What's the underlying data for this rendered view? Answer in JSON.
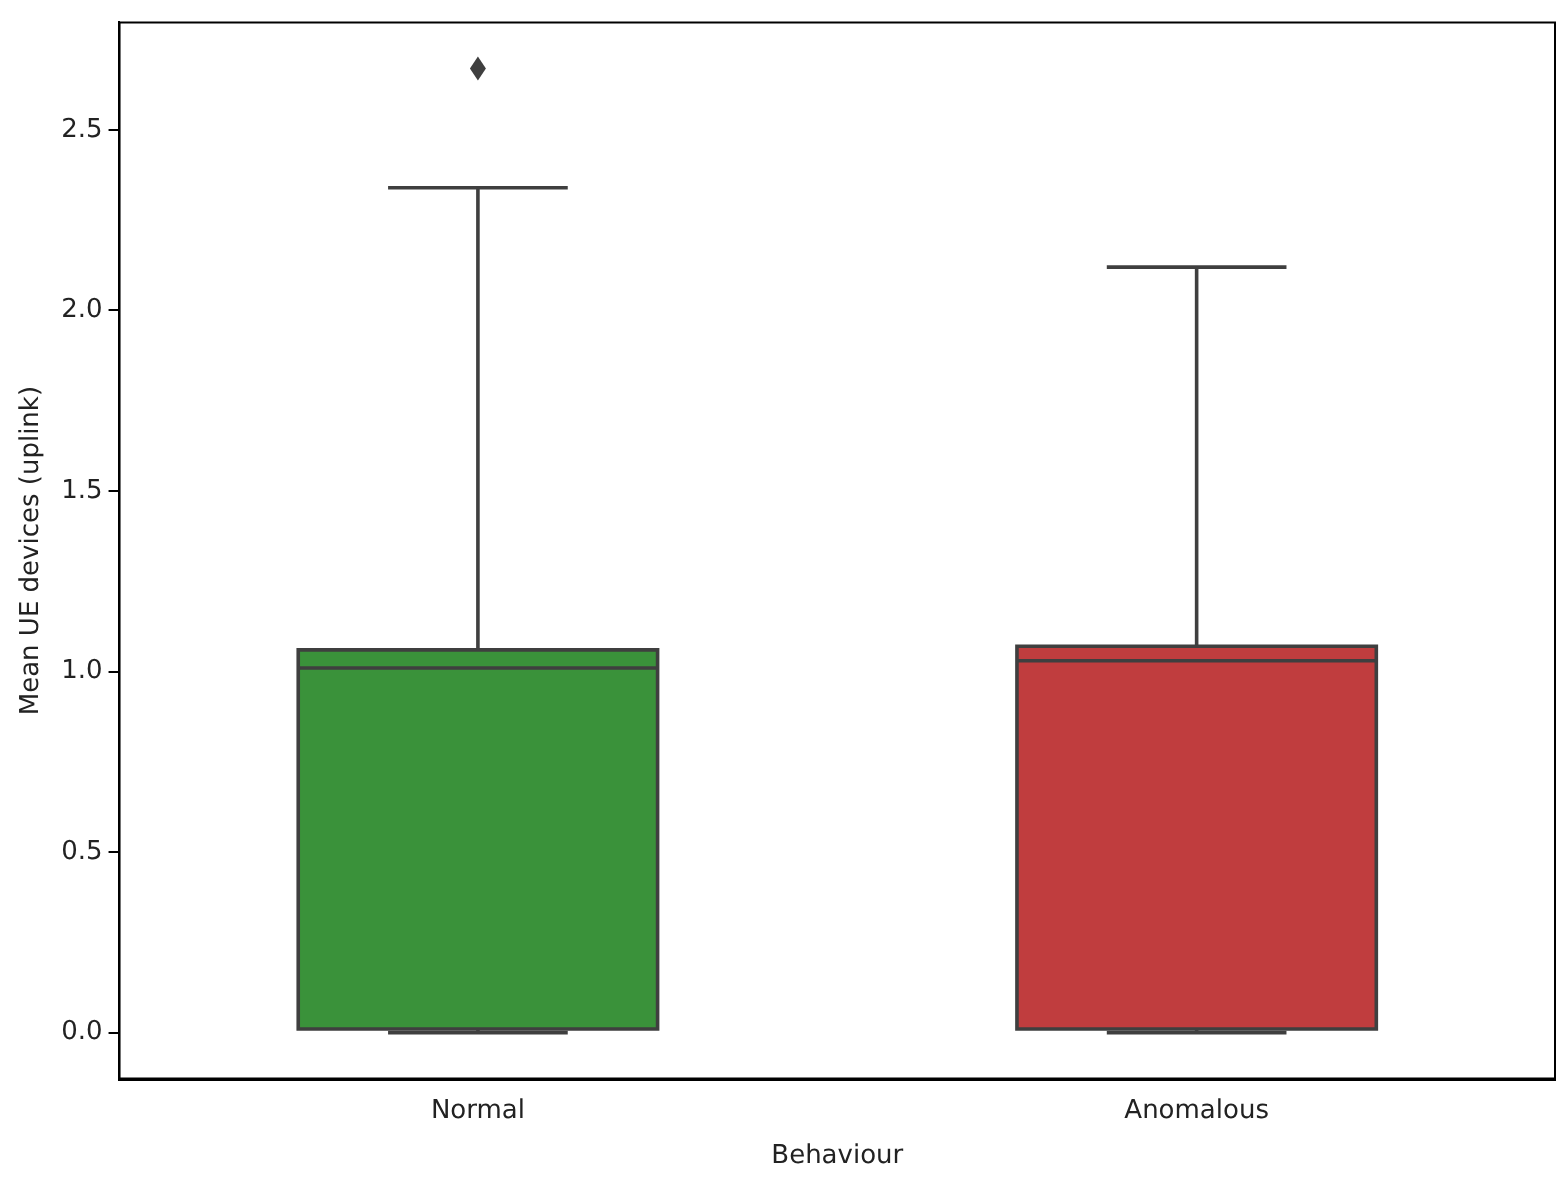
{
  "chart_data": {
    "type": "box",
    "xlabel": "Behaviour",
    "ylabel": "Mean UE devices (uplink)",
    "categories": [
      "Normal",
      "Anomalous"
    ],
    "colors": [
      "#3a923a",
      "#c03d3e"
    ],
    "boxes": [
      {
        "low": 0.0,
        "q1": 0.01,
        "median": 1.01,
        "q3": 1.06,
        "high": 2.34,
        "outliers": [
          2.67
        ]
      },
      {
        "low": 0.0,
        "q1": 0.01,
        "median": 1.03,
        "q3": 1.07,
        "high": 2.12
      }
    ],
    "ylim": [
      -0.13,
      2.8
    ],
    "yticks": [
      {
        "value": 0,
        "label": "0.0"
      },
      {
        "value": 0.5,
        "label": "0.5"
      },
      {
        "value": 1,
        "label": "1.0"
      },
      {
        "value": 1.5,
        "label": "1.5"
      },
      {
        "value": 2,
        "label": "2.0"
      },
      {
        "value": 2.5,
        "label": "2.5"
      }
    ],
    "grid": false
  }
}
